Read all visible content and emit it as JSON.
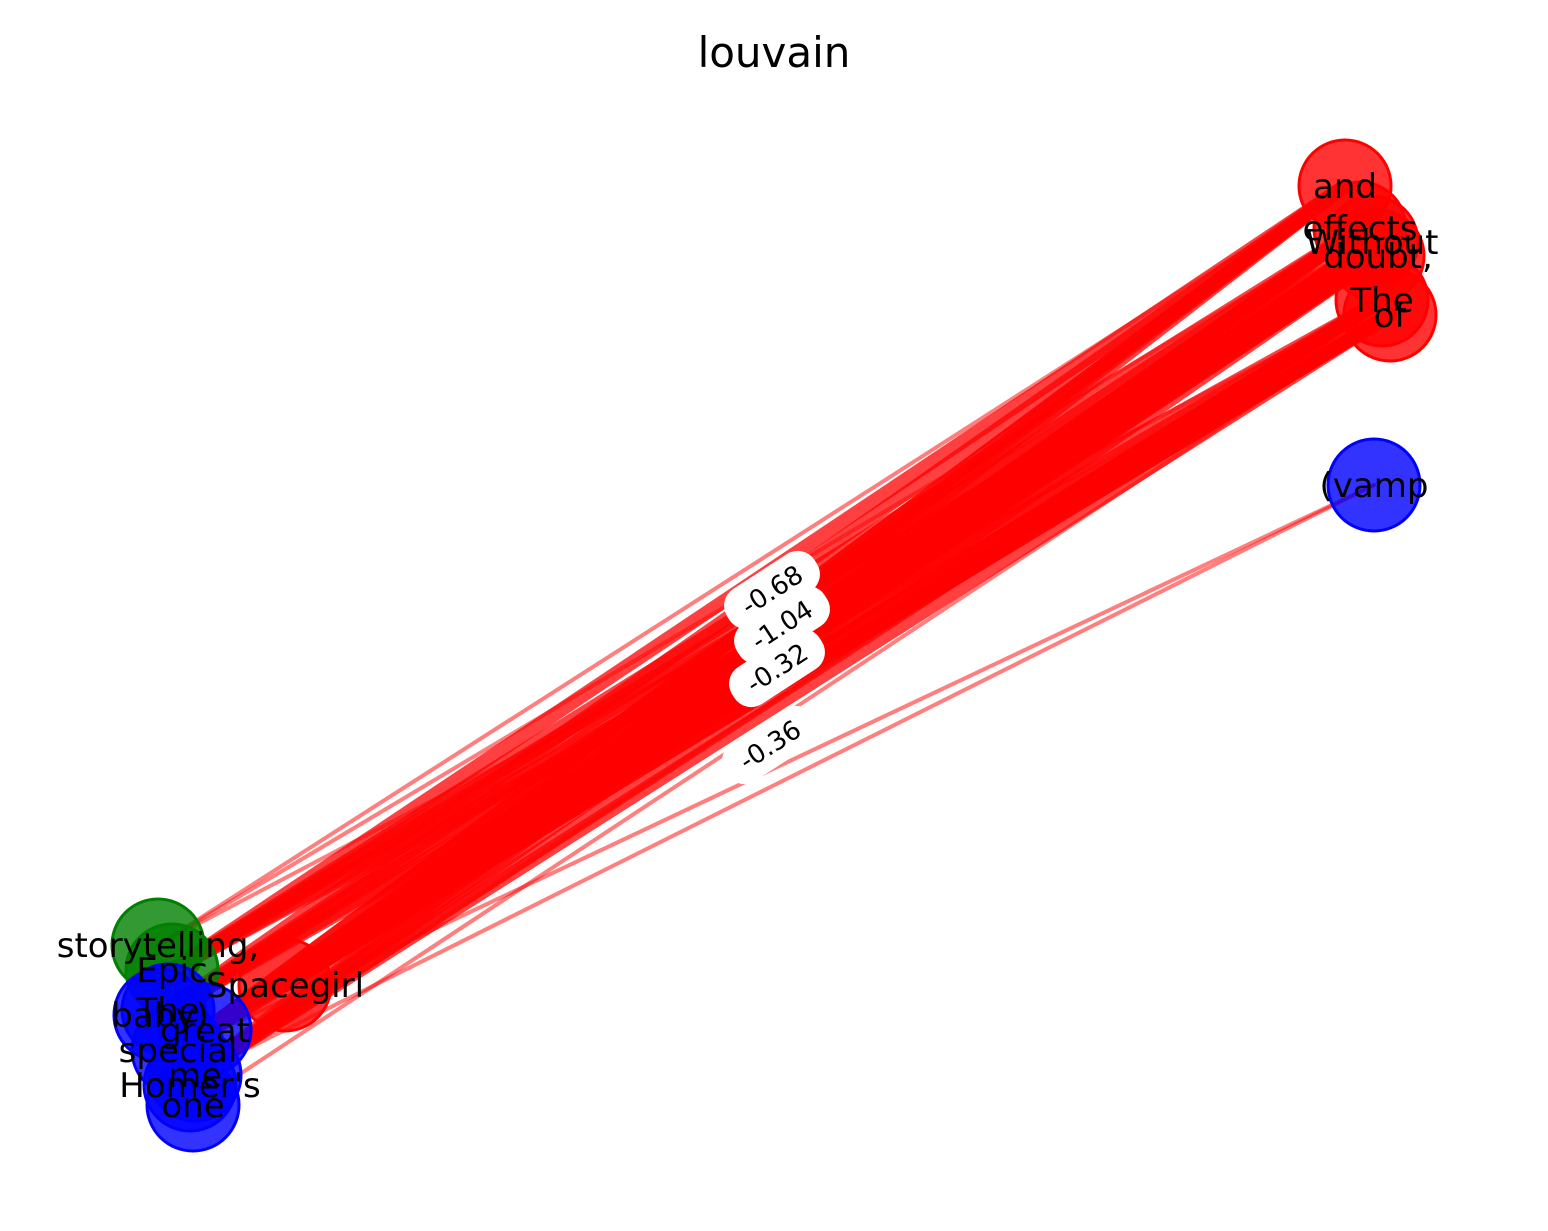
{
  "title": "louvain",
  "colors": {
    "red": "#ff0000",
    "green": "#008000",
    "blue": "#0000ff",
    "edge": "#ff0000"
  },
  "nodes": [
    {
      "id": "and",
      "label": "and",
      "group": "red"
    },
    {
      "id": "effects",
      "label": "effects",
      "group": "red"
    },
    {
      "id": "Without",
      "label": "Without",
      "group": "red"
    },
    {
      "id": "doubt",
      "label": "doubt,",
      "group": "red"
    },
    {
      "id": "The",
      "label": "The",
      "group": "red"
    },
    {
      "id": "of",
      "label": "of",
      "group": "red"
    },
    {
      "id": "vamp",
      "label": "(vamp",
      "group": "blue"
    },
    {
      "id": "storytelling",
      "label": "storytelling,",
      "group": "green"
    },
    {
      "id": "Epic",
      "label": "Epic",
      "group": "green"
    },
    {
      "id": "Spacegirl",
      "label": "Spacegirl",
      "group": "red"
    },
    {
      "id": "baby",
      "label": "baby)",
      "group": "blue"
    },
    {
      "id": "The2",
      "label": "The",
      "group": "blue"
    },
    {
      "id": "great",
      "label": "great",
      "group": "blue"
    },
    {
      "id": "special",
      "label": "special",
      "group": "blue"
    },
    {
      "id": "me",
      "label": "me",
      "group": "blue"
    },
    {
      "id": "Homer",
      "label": "Homer's",
      "group": "blue"
    },
    {
      "id": "one",
      "label": "one",
      "group": "blue"
    }
  ],
  "edge_labels": [
    "-0.68",
    "-1.04",
    "-0.32",
    "-0.36"
  ]
}
